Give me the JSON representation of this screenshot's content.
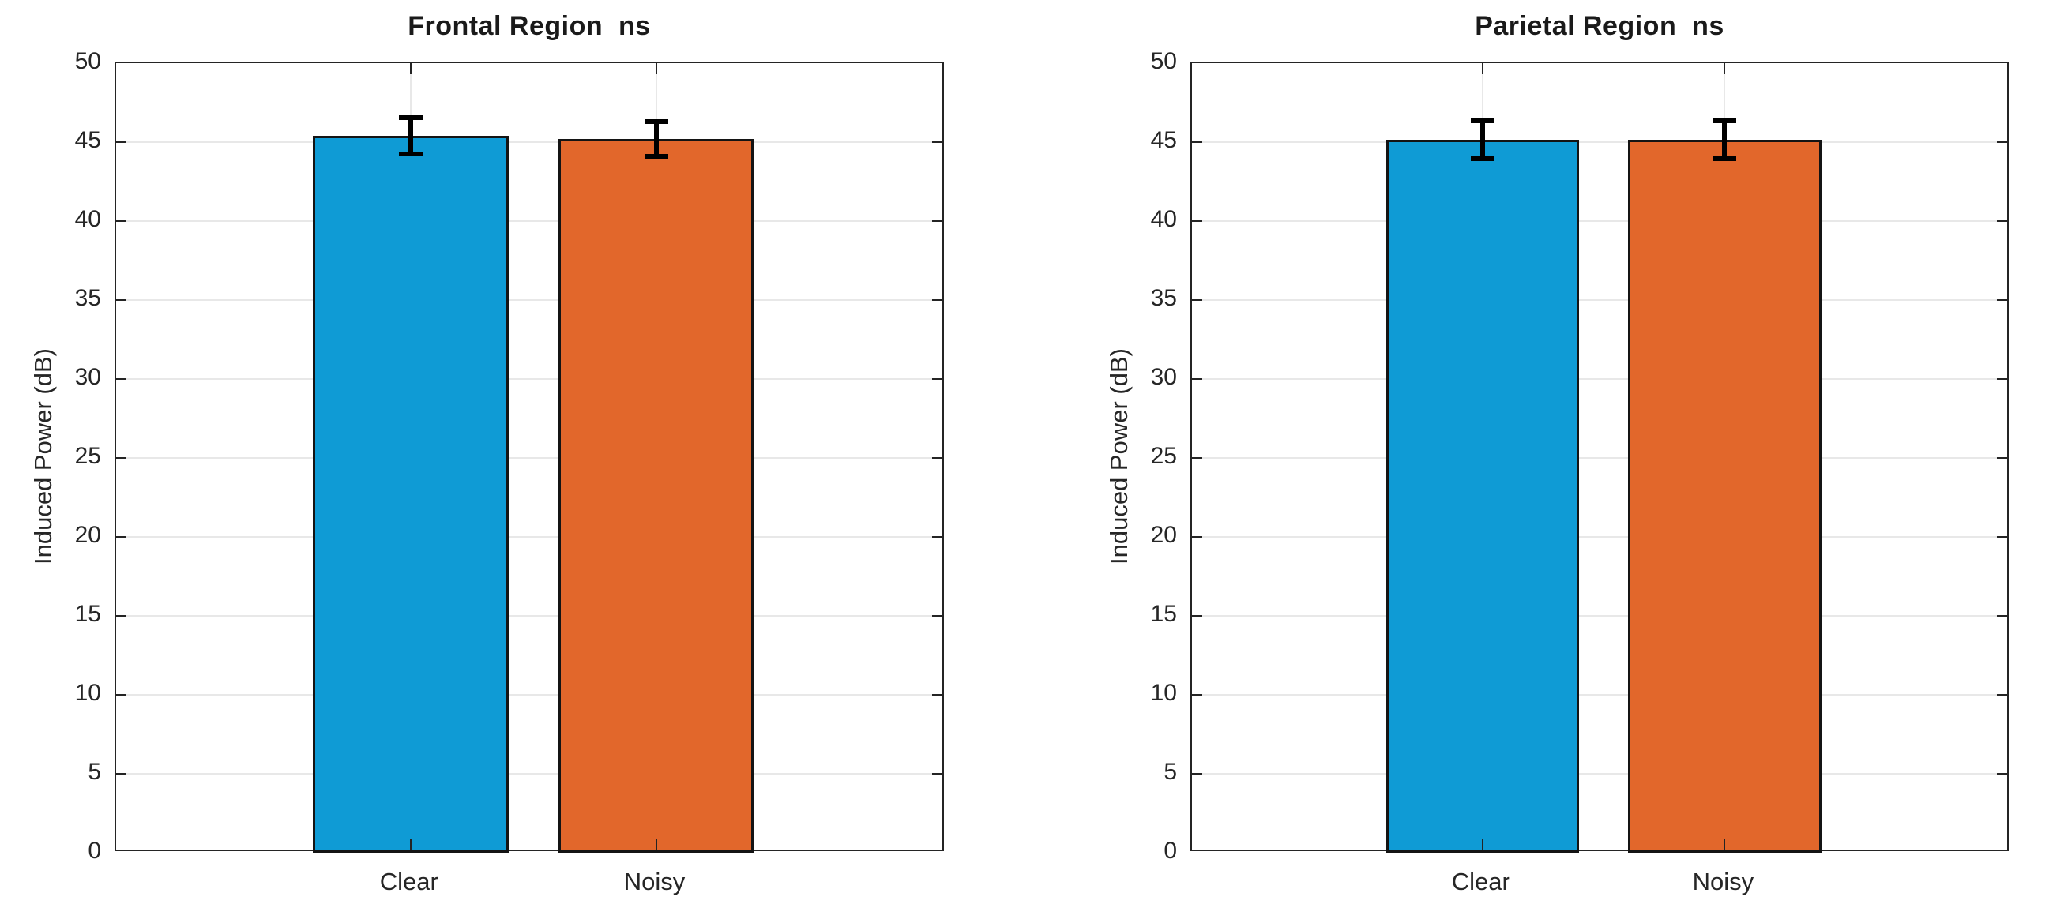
{
  "figure": {
    "background": "#ffffff",
    "axis_color": "#242424",
    "grid_color": "#e8e8e8",
    "error_bar_color": "#000000",
    "bar_edge_color": "#141414"
  },
  "chart_data": [
    {
      "type": "bar",
      "title": "Frontal Region  ns",
      "significance_note": "ns",
      "xlabel": "",
      "ylabel": "Induced Power (dB)",
      "categories": [
        "Clear",
        "Noisy"
      ],
      "series": [
        {
          "name": "Clear",
          "value": 45.4,
          "error": 1.15,
          "color": "#0F9BD5"
        },
        {
          "name": "Noisy",
          "value": 45.2,
          "error": 1.1,
          "color": "#E2672B"
        }
      ],
      "ylim": [
        0,
        50
      ],
      "yticks": [
        0,
        5,
        10,
        15,
        20,
        25,
        30,
        35,
        40,
        45,
        50
      ],
      "grid": true,
      "legend": "none"
    },
    {
      "type": "bar",
      "title": "Parietal Region  ns",
      "significance_note": "ns",
      "xlabel": "",
      "ylabel": "Induced Power (dB)",
      "categories": [
        "Clear",
        "Noisy"
      ],
      "series": [
        {
          "name": "Clear",
          "value": 45.15,
          "error": 1.2,
          "color": "#0F9BD5"
        },
        {
          "name": "Noisy",
          "value": 45.15,
          "error": 1.2,
          "color": "#E2672B"
        }
      ],
      "ylim": [
        0,
        50
      ],
      "yticks": [
        0,
        5,
        10,
        15,
        20,
        25,
        30,
        35,
        40,
        45,
        50
      ],
      "grid": true,
      "legend": "none"
    }
  ]
}
